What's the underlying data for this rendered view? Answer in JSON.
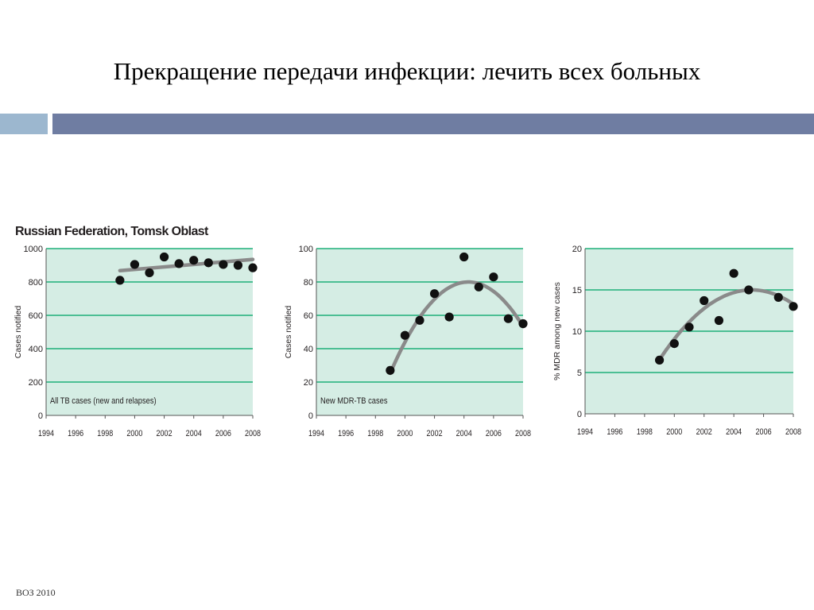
{
  "slide": {
    "title": "Прекращение передачи инфекции: лечить всех больных",
    "footer": "ВОЗ 2010",
    "band_colors": {
      "light": "#9cb7cf",
      "dark": "#6f7da2"
    }
  },
  "figure": {
    "heading": "Russian Federation, Tomsk Oblast",
    "colors": {
      "plot_bg": "#d5ede4",
      "grid": "#1fb07a",
      "point": "#111111",
      "trend": "#8a8a8a"
    }
  },
  "chart_data": [
    {
      "type": "scatter",
      "inner_label": "All TB cases (new and relapses)",
      "ylabel": "Cases notified",
      "xlim": [
        1994,
        2008
      ],
      "ylim": [
        0,
        1000
      ],
      "x_ticks": [
        "1994",
        "1996",
        "1998",
        "2000",
        "2002",
        "2004",
        "2006",
        "2008"
      ],
      "y_ticks": [
        "0",
        "200",
        "400",
        "600",
        "800",
        "1000"
      ],
      "grid": true,
      "x": [
        1999,
        2000,
        2001,
        2002,
        2003,
        2004,
        2005,
        2006,
        2007,
        2008
      ],
      "y": [
        810,
        905,
        855,
        950,
        910,
        930,
        915,
        905,
        900,
        885
      ],
      "trend": {
        "type": "linear",
        "x": [
          1999,
          2008
        ],
        "y": [
          868,
          935
        ]
      }
    },
    {
      "type": "scatter",
      "inner_label": "New MDR-TB cases",
      "ylabel": "Cases notified",
      "xlim": [
        1994,
        2008
      ],
      "ylim": [
        0,
        100
      ],
      "x_ticks": [
        "1994",
        "1996",
        "1998",
        "2000",
        "2002",
        "2004",
        "2006",
        "2008"
      ],
      "y_ticks": [
        "0",
        "20",
        "40",
        "60",
        "80",
        "100"
      ],
      "grid": true,
      "x": [
        1999,
        2000,
        2001,
        2002,
        2003,
        2004,
        2005,
        2006,
        2007,
        2008
      ],
      "y": [
        27,
        48,
        57,
        73,
        59,
        95,
        77,
        83,
        58,
        55
      ],
      "trend": {
        "type": "quadratic",
        "vertex_x": 2004.3,
        "vertex_y": 80,
        "a": -1.95,
        "x_range": [
          1999,
          2008
        ]
      }
    },
    {
      "type": "scatter",
      "inner_label": "",
      "ylabel": "% MDR among new cases",
      "xlim": [
        1994,
        2008
      ],
      "ylim": [
        0,
        20
      ],
      "x_ticks": [
        "1994",
        "1996",
        "1998",
        "2000",
        "2002",
        "2004",
        "2006",
        "2008"
      ],
      "y_ticks": [
        "0",
        "5",
        "10",
        "15",
        "20"
      ],
      "grid": true,
      "x": [
        1999,
        2000,
        2001,
        2002,
        2003,
        2004,
        2005,
        2007,
        2008
      ],
      "y": [
        6.5,
        8.5,
        10.5,
        13.7,
        11.3,
        17.0,
        15.0,
        14.1,
        13.0
      ],
      "trend": {
        "type": "quadratic",
        "vertex_x": 2005.2,
        "vertex_y": 15.0,
        "a": -0.22,
        "x_range": [
          1999,
          2008
        ]
      }
    }
  ]
}
